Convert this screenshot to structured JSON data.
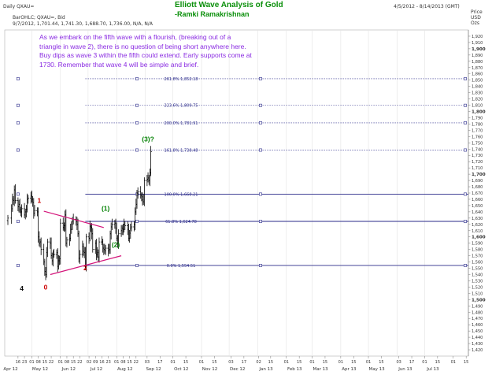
{
  "header": {
    "instrument": "Daily QXAU=",
    "date_range": "4/5/2012 - 8/14/2013 (GMT)",
    "indicator_label": "BarOHLC; QXAU=, Bid",
    "last_bar": "9/7/2012, 1,701.44, 1,741.30, 1,688.70, 1,736.00, N/A, N/A",
    "axis_title_lines": [
      "Price",
      "USD",
      "Ozs"
    ]
  },
  "title": {
    "line1": "Elliott Wave Analysis of Gold",
    "line2": "-Ramki Ramakrishnan"
  },
  "note": "As we embark on the fifth wave with a flourish, (breaking out of a triangle in wave 2), there is no question of being short anywhere here. Buy dips as wave 3 within the fifth could extend. Early supports come at 1730. Remember that wave 4 will be simple and brief.",
  "colors": {
    "bars": "#000000",
    "fib_line": "#2a2a8a",
    "trend_line": "#d4147a",
    "wave_label_red": "#cc0000",
    "wave_label_green": "#008000",
    "title": "#0a8f0a",
    "note": "#8a2be2"
  },
  "chart_data": {
    "type": "ohlc",
    "series": "Gold spot, daily bid (approximate, read from figure)",
    "ylim": [
      1410,
      1930
    ],
    "price_axis_labels": [
      "1,920",
      "1,910",
      "1,900",
      "1,890",
      "1,880",
      "1,870",
      "1,860",
      "1,850",
      "1,840",
      "1,830",
      "1,820",
      "1,810",
      "1,800",
      "1,790",
      "1,780",
      "1,770",
      "1,760",
      "1,750",
      "1,740",
      "1,730",
      "1,720",
      "1,710",
      "1,700",
      "1,690",
      "1,680",
      "1,670",
      "1,660",
      "1,650",
      "1,640",
      "1,630",
      "1,620",
      "1,610",
      "1,600",
      "1,590",
      "1,580",
      "1,570",
      "1,560",
      "1,550",
      "1,540",
      "1,530",
      "1,520",
      "1,510",
      "1,500",
      "1,490",
      "1,480",
      "1,470",
      "1,460",
      "1,450",
      "1,440",
      "1,430",
      "1,420"
    ],
    "bold_price_labels": [
      "1,900",
      "1,800",
      "1,700",
      "1,600",
      "1,500"
    ],
    "x_day_ticks": [
      {
        "d": "2012-04-16",
        "label": "16"
      },
      {
        "d": "2012-04-23",
        "label": "23"
      },
      {
        "d": "2012-05-01",
        "label": "01"
      },
      {
        "d": "2012-05-08",
        "label": "08"
      },
      {
        "d": "2012-05-15",
        "label": "15"
      },
      {
        "d": "2012-05-22",
        "label": "22"
      },
      {
        "d": "2012-06-01",
        "label": "01"
      },
      {
        "d": "2012-06-08",
        "label": "08"
      },
      {
        "d": "2012-06-15",
        "label": "15"
      },
      {
        "d": "2012-06-22",
        "label": "22"
      },
      {
        "d": "2012-07-02",
        "label": "02"
      },
      {
        "d": "2012-07-09",
        "label": "09"
      },
      {
        "d": "2012-07-16",
        "label": "16"
      },
      {
        "d": "2012-07-23",
        "label": "23"
      },
      {
        "d": "2012-08-01",
        "label": "01"
      },
      {
        "d": "2012-08-08",
        "label": "08"
      },
      {
        "d": "2012-08-15",
        "label": "15"
      },
      {
        "d": "2012-08-22",
        "label": "22"
      },
      {
        "d": "2012-09-03",
        "label": "03"
      },
      {
        "d": "2012-09-17",
        "label": "17"
      },
      {
        "d": "2012-10-01",
        "label": "01"
      },
      {
        "d": "2012-10-15",
        "label": "15"
      },
      {
        "d": "2012-11-01",
        "label": "01"
      },
      {
        "d": "2012-11-15",
        "label": "15"
      },
      {
        "d": "2012-12-03",
        "label": "03"
      },
      {
        "d": "2012-12-17",
        "label": "17"
      },
      {
        "d": "2013-01-02",
        "label": "02"
      },
      {
        "d": "2013-01-15",
        "label": "15"
      },
      {
        "d": "2013-02-01",
        "label": "01"
      },
      {
        "d": "2013-02-15",
        "label": "15"
      },
      {
        "d": "2013-03-01",
        "label": "01"
      },
      {
        "d": "2013-03-15",
        "label": "15"
      },
      {
        "d": "2013-04-01",
        "label": "01"
      },
      {
        "d": "2013-04-15",
        "label": "15"
      },
      {
        "d": "2013-05-01",
        "label": "01"
      },
      {
        "d": "2013-05-15",
        "label": "15"
      },
      {
        "d": "2013-06-03",
        "label": "03"
      },
      {
        "d": "2013-06-17",
        "label": "17"
      },
      {
        "d": "2013-07-01",
        "label": "01"
      },
      {
        "d": "2013-07-15",
        "label": "15"
      },
      {
        "d": "2013-08-01",
        "label": "01"
      },
      {
        "d": "2013-08-15",
        "label": "15"
      }
    ],
    "x_month_labels": [
      {
        "d": "2012-04-08",
        "label": "Apr 12"
      },
      {
        "d": "2012-05-10",
        "label": "May 12"
      },
      {
        "d": "2012-06-10",
        "label": "Jun 12"
      },
      {
        "d": "2012-07-10",
        "label": "Jul 12"
      },
      {
        "d": "2012-08-10",
        "label": "Aug 12"
      },
      {
        "d": "2012-09-10",
        "label": "Sep 12"
      },
      {
        "d": "2012-10-10",
        "label": "Oct 12"
      },
      {
        "d": "2012-11-10",
        "label": "Nov 12"
      },
      {
        "d": "2012-12-10",
        "label": "Dec 12"
      },
      {
        "d": "2013-01-10",
        "label": "Jan 13"
      },
      {
        "d": "2013-02-10",
        "label": "Feb 13"
      },
      {
        "d": "2013-03-10",
        "label": "Mar 13"
      },
      {
        "d": "2013-04-10",
        "label": "Apr 13"
      },
      {
        "d": "2013-05-10",
        "label": "May 13"
      },
      {
        "d": "2013-06-10",
        "label": "Jun 13"
      },
      {
        "d": "2013-07-10",
        "label": "Jul 13"
      }
    ],
    "closes": [
      [
        "2012-04-05",
        1630
      ],
      [
        "2012-04-09",
        1645
      ],
      [
        "2012-04-10",
        1660
      ],
      [
        "2012-04-11",
        1658
      ],
      [
        "2012-04-12",
        1675
      ],
      [
        "2012-04-13",
        1658
      ],
      [
        "2012-04-16",
        1648
      ],
      [
        "2012-04-17",
        1652
      ],
      [
        "2012-04-18",
        1643
      ],
      [
        "2012-04-19",
        1640
      ],
      [
        "2012-04-20",
        1645
      ],
      [
        "2012-04-23",
        1635
      ],
      [
        "2012-04-24",
        1640
      ],
      [
        "2012-04-25",
        1644
      ],
      [
        "2012-04-26",
        1660
      ],
      [
        "2012-04-27",
        1662
      ],
      [
        "2012-04-30",
        1665
      ],
      [
        "2012-05-01",
        1660
      ],
      [
        "2012-05-02",
        1655
      ],
      [
        "2012-05-03",
        1638
      ],
      [
        "2012-05-04",
        1642
      ],
      [
        "2012-05-07",
        1640
      ],
      [
        "2012-05-08",
        1600
      ],
      [
        "2012-05-09",
        1590
      ],
      [
        "2012-05-10",
        1592
      ],
      [
        "2012-05-11",
        1580
      ],
      [
        "2012-05-14",
        1560
      ],
      [
        "2012-05-15",
        1545
      ],
      [
        "2012-05-16",
        1540
      ],
      [
        "2012-05-17",
        1575
      ],
      [
        "2012-05-18",
        1592
      ],
      [
        "2012-05-21",
        1590
      ],
      [
        "2012-05-22",
        1570
      ],
      [
        "2012-05-23",
        1562
      ],
      [
        "2012-05-24",
        1572
      ],
      [
        "2012-05-25",
        1572
      ],
      [
        "2012-05-28",
        1575
      ],
      [
        "2012-05-29",
        1553
      ],
      [
        "2012-05-30",
        1562
      ],
      [
        "2012-05-31",
        1565
      ],
      [
        "2012-06-01",
        1622
      ],
      [
        "2012-06-04",
        1615
      ],
      [
        "2012-06-05",
        1618
      ],
      [
        "2012-06-06",
        1635
      ],
      [
        "2012-06-07",
        1590
      ],
      [
        "2012-06-08",
        1595
      ],
      [
        "2012-06-11",
        1598
      ],
      [
        "2012-06-12",
        1612
      ],
      [
        "2012-06-13",
        1620
      ],
      [
        "2012-06-14",
        1625
      ],
      [
        "2012-06-15",
        1628
      ],
      [
        "2012-06-18",
        1625
      ],
      [
        "2012-06-19",
        1620
      ],
      [
        "2012-06-20",
        1605
      ],
      [
        "2012-06-21",
        1566
      ],
      [
        "2012-06-22",
        1572
      ],
      [
        "2012-06-25",
        1585
      ],
      [
        "2012-06-26",
        1577
      ],
      [
        "2012-06-27",
        1575
      ],
      [
        "2012-06-28",
        1552
      ],
      [
        "2012-06-29",
        1600
      ],
      [
        "2012-07-02",
        1598
      ],
      [
        "2012-07-03",
        1617
      ],
      [
        "2012-07-04",
        1615
      ],
      [
        "2012-07-05",
        1605
      ],
      [
        "2012-07-06",
        1580
      ],
      [
        "2012-07-09",
        1590
      ],
      [
        "2012-07-10",
        1572
      ],
      [
        "2012-07-11",
        1575
      ],
      [
        "2012-07-12",
        1568
      ],
      [
        "2012-07-13",
        1592
      ],
      [
        "2012-07-16",
        1592
      ],
      [
        "2012-07-17",
        1582
      ],
      [
        "2012-07-18",
        1580
      ],
      [
        "2012-07-19",
        1578
      ],
      [
        "2012-07-20",
        1582
      ],
      [
        "2012-07-23",
        1578
      ],
      [
        "2012-07-24",
        1580
      ],
      [
        "2012-07-25",
        1605
      ],
      [
        "2012-07-26",
        1616
      ],
      [
        "2012-07-27",
        1620
      ],
      [
        "2012-07-30",
        1622
      ],
      [
        "2012-07-31",
        1614
      ],
      [
        "2012-08-01",
        1598
      ],
      [
        "2012-08-02",
        1590
      ],
      [
        "2012-08-03",
        1605
      ],
      [
        "2012-08-06",
        1610
      ],
      [
        "2012-08-07",
        1614
      ],
      [
        "2012-08-08",
        1612
      ],
      [
        "2012-08-09",
        1620
      ],
      [
        "2012-08-10",
        1618
      ],
      [
        "2012-08-13",
        1612
      ],
      [
        "2012-08-14",
        1598
      ],
      [
        "2012-08-15",
        1606
      ],
      [
        "2012-08-16",
        1614
      ],
      [
        "2012-08-17",
        1616
      ],
      [
        "2012-08-20",
        1620
      ],
      [
        "2012-08-21",
        1640
      ],
      [
        "2012-08-22",
        1652
      ],
      [
        "2012-08-23",
        1670
      ],
      [
        "2012-08-24",
        1672
      ],
      [
        "2012-08-27",
        1666
      ],
      [
        "2012-08-28",
        1664
      ],
      [
        "2012-08-29",
        1659
      ],
      [
        "2012-08-30",
        1656
      ],
      [
        "2012-08-31",
        1690
      ],
      [
        "2012-09-03",
        1692
      ],
      [
        "2012-09-04",
        1694
      ],
      [
        "2012-09-05",
        1690
      ],
      [
        "2012-09-06",
        1702
      ],
      [
        "2012-09-07",
        1736
      ]
    ],
    "fib_levels": [
      {
        "label": "261.8% 1,852.18",
        "value": 1852.18
      },
      {
        "label": "223.6% 1,809.75",
        "value": 1809.75
      },
      {
        "label": "200.0% 1,781.91",
        "value": 1781.91
      },
      {
        "label": "161.8% 1,738.48",
        "value": 1738.48
      },
      {
        "label": "100.0% 1,668.21",
        "value": 1668.21
      },
      {
        "label": "61.8% 1,624.78",
        "value": 1624.78
      },
      {
        "label": "0.0% 1,554.51",
        "value": 1554.51
      }
    ],
    "fib_start_date": "2012-06-28",
    "fib_end_date": "2013-08-14",
    "fib_marker_dates": [
      "2012-04-16",
      "2012-08-23",
      "2013-01-04",
      "2013-08-14"
    ],
    "triangle_lines": [
      {
        "from": [
          "2012-05-14",
          1641
        ],
        "to": [
          "2012-07-18",
          1615
        ]
      },
      {
        "from": [
          "2012-05-21",
          1540
        ],
        "to": [
          "2012-08-06",
          1570
        ]
      }
    ],
    "wave_labels": [
      {
        "text": "4",
        "date": "2012-04-20",
        "price": 1514,
        "color": "#000000"
      },
      {
        "text": "0",
        "date": "2012-05-16",
        "price": 1516,
        "color": "#cc0000"
      },
      {
        "text": "1",
        "date": "2012-05-09",
        "price": 1654,
        "color": "#cc0000"
      },
      {
        "text": "2",
        "date": "2012-06-28",
        "price": 1547,
        "color": "#cc0000"
      },
      {
        "text": "(1)",
        "date": "2012-07-20",
        "price": 1642,
        "color": "#008000"
      },
      {
        "text": "(2)",
        "date": "2012-07-31",
        "price": 1584,
        "color": "#008000"
      },
      {
        "text": "(3)?",
        "date": "2012-09-04",
        "price": 1752,
        "color": "#008000"
      }
    ]
  }
}
